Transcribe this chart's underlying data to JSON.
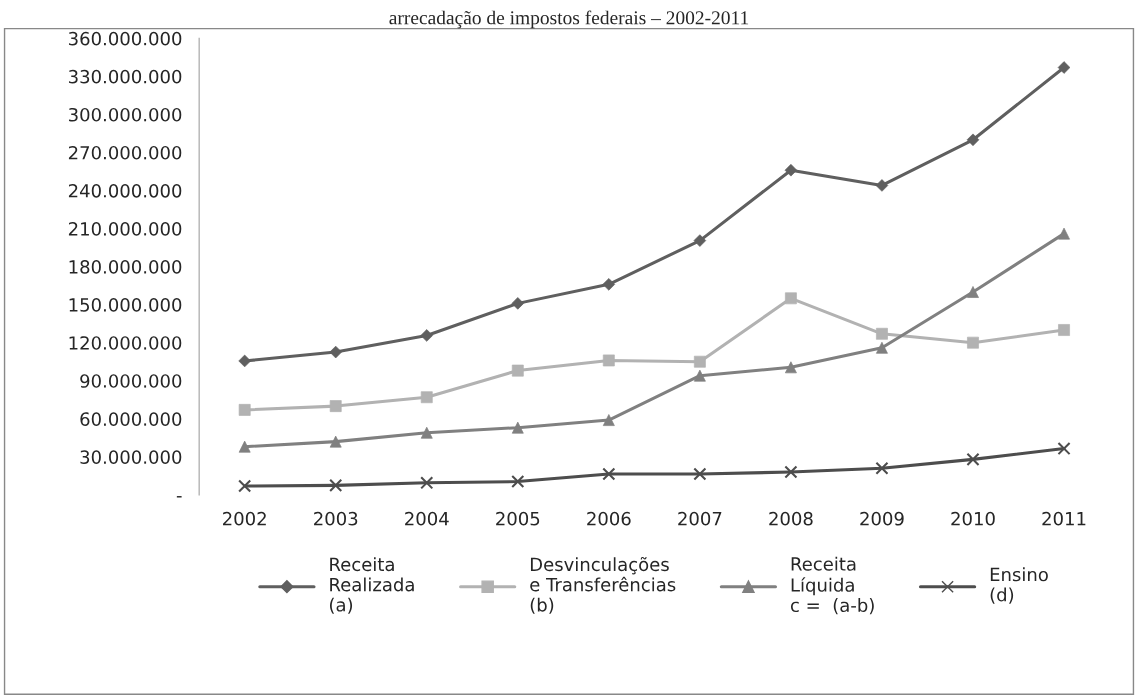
{
  "chart_data": {
    "type": "line",
    "title": "arrecadação de impostos federais – 2002-2011",
    "categories": [
      "2002",
      "2003",
      "2004",
      "2005",
      "2006",
      "2007",
      "2008",
      "2009",
      "2010",
      "2011"
    ],
    "series": [
      {
        "name": "Receita\nRealizada\n(a)",
        "color": "#5f5f5f",
        "marker": "diamond",
        "values": [
          105600000,
          112600000,
          125700000,
          151000000,
          166000000,
          200500000,
          256000000,
          244000000,
          280000000,
          337000000
        ]
      },
      {
        "name": "Desvinculações\ne Transferências\n(b)",
        "color": "#b2b2b2",
        "marker": "square",
        "values": [
          67000000,
          70000000,
          77000000,
          98000000,
          106000000,
          105000000,
          155000000,
          127000000,
          120000000,
          130000000
        ]
      },
      {
        "name": "Receita\nLíquida\nc =  (a-b)",
        "color": "#808080",
        "marker": "triangle",
        "values": [
          38000000,
          42000000,
          49000000,
          53000000,
          59000000,
          94000000,
          100600000,
          116000000,
          160000000,
          206000000
        ]
      },
      {
        "name": "Ensino\n(d)",
        "color": "#4d4d4d",
        "marker": "cross",
        "values": [
          7000000,
          7500000,
          9500000,
          10500000,
          16500000,
          16500000,
          18000000,
          21000000,
          28000000,
          36500000
        ]
      }
    ],
    "ylim": [
      0,
      360000000
    ],
    "yticks": [
      {
        "value": 0,
        "label": "-"
      },
      {
        "value": 30000000,
        "label": "30.000.000"
      },
      {
        "value": 60000000,
        "label": "60.000.000"
      },
      {
        "value": 90000000,
        "label": "90.000.000"
      },
      {
        "value": 120000000,
        "label": "120.000.000"
      },
      {
        "value": 150000000,
        "label": "150.000.000"
      },
      {
        "value": 180000000,
        "label": "180.000.000"
      },
      {
        "value": 210000000,
        "label": "210.000.000"
      },
      {
        "value": 240000000,
        "label": "240.000.000"
      },
      {
        "value": 270000000,
        "label": "270.000.000"
      },
      {
        "value": 300000000,
        "label": "300.000.000"
      },
      {
        "value": 330000000,
        "label": "330.000.000"
      },
      {
        "value": 360000000,
        "label": "360.000.000"
      }
    ],
    "grid": false,
    "legend": "bottom",
    "line_style": "solid"
  }
}
